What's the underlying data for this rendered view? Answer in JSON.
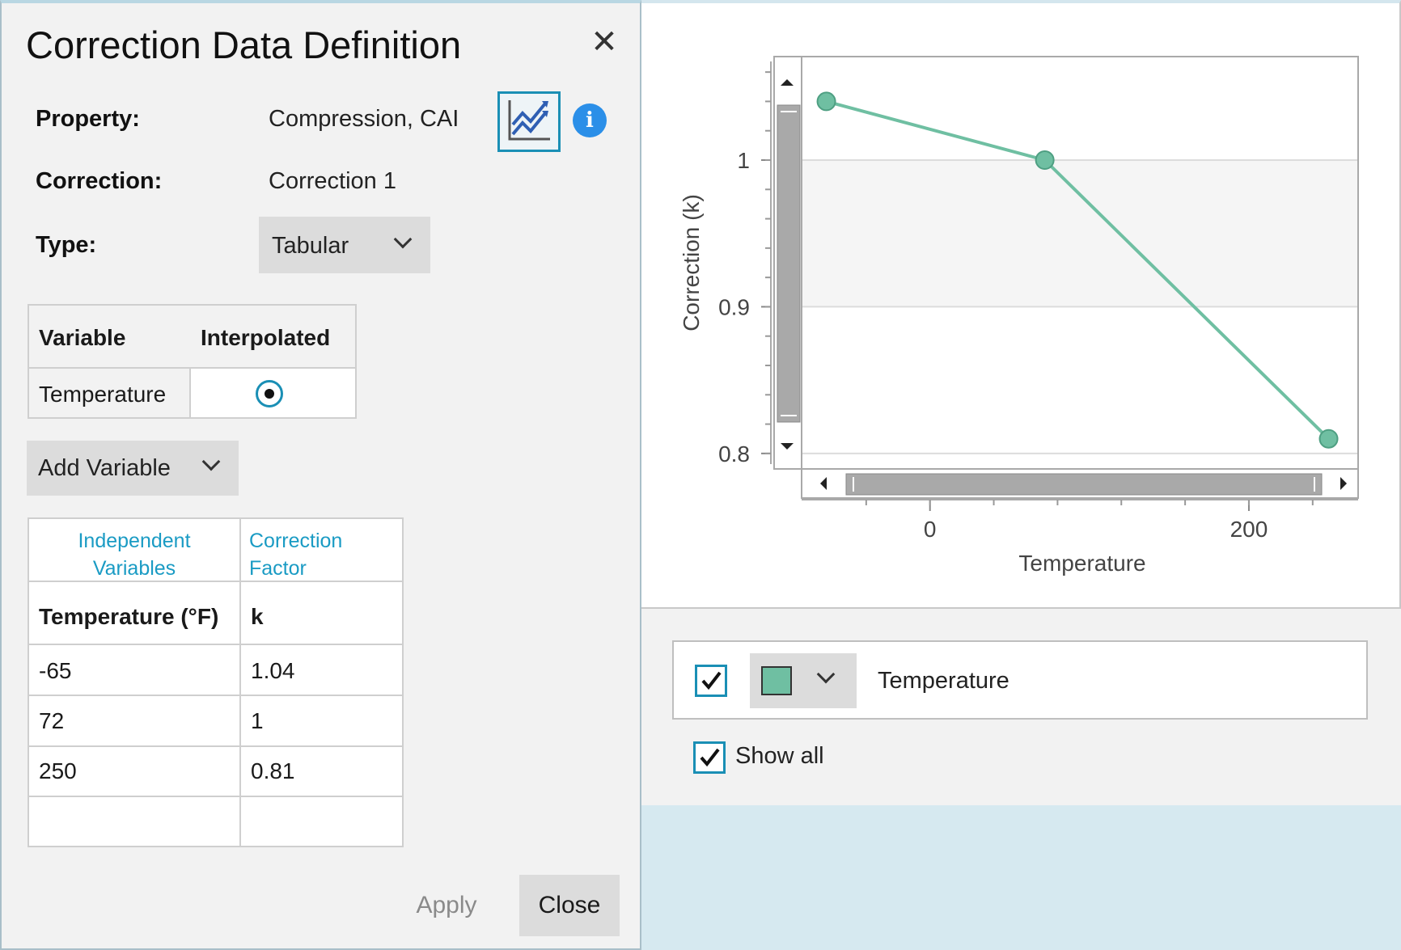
{
  "dialog": {
    "title": "Correction Data Definition",
    "close_icon": "close-icon",
    "property_label": "Property:",
    "property_value": "Compression, CAI",
    "correction_label": "Correction:",
    "correction_value": "Correction 1",
    "type_label": "Type:",
    "type_value": "Tabular",
    "chart_toggle_icon": "line-chart-icon",
    "info_icon": "info-icon",
    "info_glyph": "i"
  },
  "variables_table": {
    "headers": [
      "Variable",
      "Interpolated"
    ],
    "rows": [
      {
        "variable": "Temperature",
        "interpolated": true
      }
    ]
  },
  "add_variable_label": "Add Variable",
  "data_table": {
    "group_headers": [
      "Independent\nVariables",
      "Correction\nFactor"
    ],
    "group_header_lines": [
      [
        "Independent",
        "Variables"
      ],
      [
        "Correction",
        "Factor"
      ]
    ],
    "column_headers": [
      "Temperature (°F)",
      "k"
    ],
    "rows": [
      [
        "-65",
        "1.04"
      ],
      [
        "72",
        "1"
      ],
      [
        "250",
        "0.81"
      ],
      [
        "",
        ""
      ]
    ]
  },
  "buttons": {
    "apply": "Apply",
    "close": "Close"
  },
  "colors": {
    "accent": "#1a8fb5",
    "series": "#6fbfa2",
    "info": "#2b8fe8",
    "header_link": "#1a9bc4"
  },
  "chart_data": {
    "type": "line",
    "xlabel": "Temperature",
    "ylabel": "Correction (k)",
    "x_ticks": [
      "0",
      "200"
    ],
    "y_ticks": [
      "0.8",
      "0.9",
      "1"
    ],
    "xlim": [
      -80,
      268
    ],
    "ylim": [
      0.79,
      1.07
    ],
    "grid": true,
    "series": [
      {
        "name": "Temperature",
        "x": [
          -65,
          72,
          250
        ],
        "y": [
          1.04,
          1,
          0.81
        ]
      }
    ]
  },
  "legend": {
    "items": [
      {
        "label": "Temperature",
        "checked": true,
        "color": "#6fbfa2"
      }
    ],
    "show_all_label": "Show all",
    "show_all_checked": true
  }
}
